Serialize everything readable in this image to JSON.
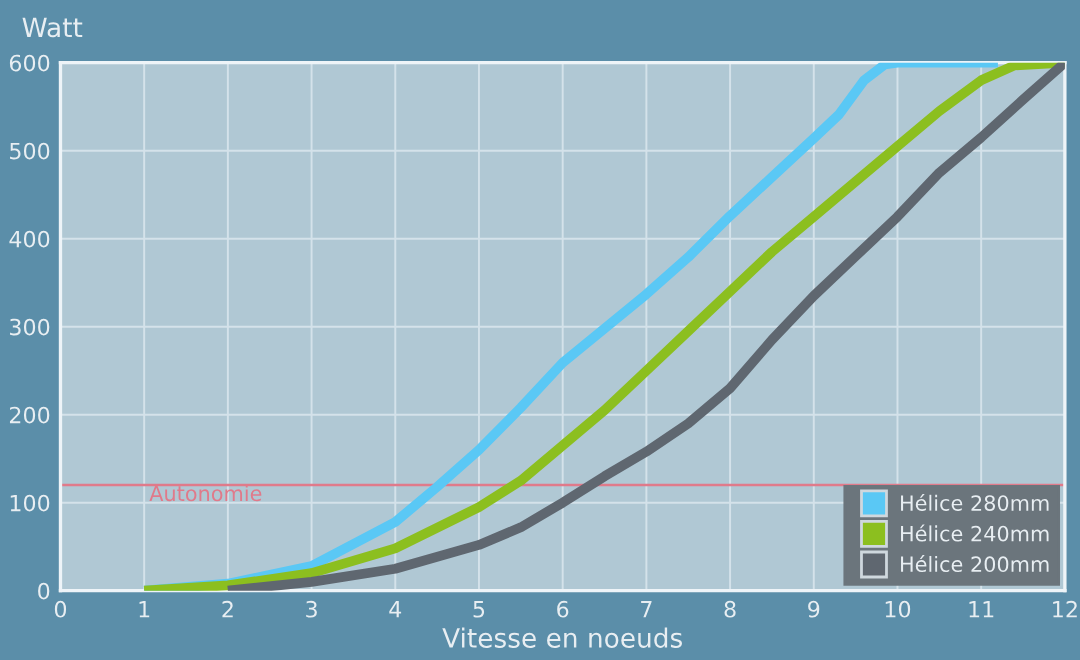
{
  "chart_data": {
    "type": "line",
    "ylabel": "Watt",
    "xlabel": "Vitesse en noeuds",
    "xlim": [
      0,
      12
    ],
    "xticks": [
      0,
      1,
      2,
      3,
      4,
      5,
      6,
      7,
      8,
      9,
      10,
      11,
      12
    ],
    "ylim": [
      0,
      600
    ],
    "yticks": [
      0,
      100,
      200,
      300,
      400,
      500,
      600
    ],
    "grid": true,
    "legend": "bottom right",
    "line_style": "solid",
    "marker": "none",
    "series": [
      {
        "name": "Hélice 280mm",
        "color": "#5ac8f5",
        "x": [
          1,
          2,
          3,
          4,
          4.5,
          5,
          5.5,
          6,
          6.5,
          7,
          7.5,
          8,
          8.5,
          9,
          9.3,
          9.6,
          9.85,
          10,
          11.2
        ],
        "values": [
          0,
          8,
          28,
          78,
          118,
          160,
          208,
          259,
          298,
          337,
          379,
          426,
          470,
          514,
          541,
          580,
          598,
          600,
          600
        ]
      },
      {
        "name": "Hélice 240mm",
        "color": "#8cbf1f",
        "x": [
          1,
          2,
          3,
          4,
          5,
          5.5,
          6,
          6.5,
          7,
          7.5,
          8,
          8.5,
          9,
          9.5,
          10,
          10.5,
          11,
          11.4,
          12
        ],
        "values": [
          0,
          6,
          20,
          48,
          95,
          125,
          165,
          205,
          250,
          295,
          340,
          385,
          425,
          465,
          505,
          545,
          580,
          597,
          600
        ]
      },
      {
        "name": "Hélice 200mm",
        "color": "#5f6770",
        "x": [
          2,
          3,
          4,
          5,
          5.5,
          6,
          6.5,
          7,
          7.5,
          8,
          8.5,
          9,
          9.5,
          10,
          10.5,
          11,
          11.5,
          12
        ],
        "values": [
          0,
          10,
          25,
          52,
          72,
          100,
          130,
          158,
          190,
          230,
          285,
          335,
          380,
          425,
          475,
          515,
          558,
          600
        ]
      }
    ],
    "ref_lines": [
      {
        "axis": "y",
        "value": 120,
        "label": "Autonomie",
        "color": "#e07a8a"
      }
    ]
  }
}
